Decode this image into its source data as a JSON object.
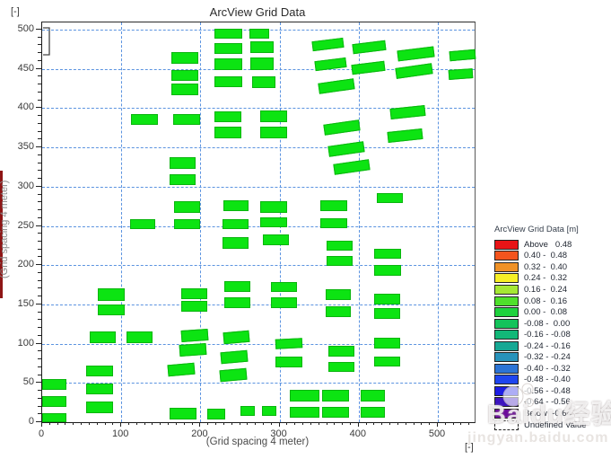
{
  "page": {
    "corner_top_left": "[-]",
    "corner_bottom_right": "[-]"
  },
  "chart": {
    "title": "ArcView Grid Data",
    "x_label": "(Grid spacing 4 meter)",
    "y_label": "(Grid spacing 4 meter)",
    "x_major_ticks": [
      0,
      100,
      200,
      300,
      400,
      500
    ],
    "y_major_ticks": [
      0,
      50,
      100,
      150,
      200,
      250,
      300,
      350,
      400,
      450,
      500
    ],
    "x_minor_step": 10,
    "y_minor_step": 10,
    "x_grid_lines": [
      100,
      200,
      300,
      400,
      500
    ],
    "y_grid_lines": [
      50,
      100,
      150,
      200,
      250,
      300,
      350,
      400,
      450,
      500
    ],
    "grid_color": "#5b93e0",
    "cell_color": "#0ce412"
  },
  "legend": {
    "title": "ArcView Grid Data [m]",
    "entries": [
      {
        "label": "Above   0.48",
        "color": "#e81417"
      },
      {
        "label": "0.40 -  0.48",
        "color": "#f4541d"
      },
      {
        "label": "0.32 -  0.40",
        "color": "#ef9227"
      },
      {
        "label": "0.24 -  0.32",
        "color": "#f7ef26"
      },
      {
        "label": "0.16 -  0.24",
        "color": "#a5e834"
      },
      {
        "label": "0.08 -  0.16",
        "color": "#4fe02b"
      },
      {
        "label": "0.00 -  0.08",
        "color": "#1ed23d"
      },
      {
        "label": "-0.08 -  0.00",
        "color": "#14c35b"
      },
      {
        "label": "-0.16 - -0.08",
        "color": "#12b878"
      },
      {
        "label": "-0.24 - -0.16",
        "color": "#16a894"
      },
      {
        "label": "-0.32 - -0.24",
        "color": "#2793bb"
      },
      {
        "label": "-0.40 - -0.32",
        "color": "#2c74d5"
      },
      {
        "label": "-0.48 - -0.40",
        "color": "#1e45ef"
      },
      {
        "label": "-0.56 - -0.48",
        "color": "#1d1de4"
      },
      {
        "label": "-0.64 - -0.56",
        "color": "#3c14c0"
      },
      {
        "label": "Below  -0.64",
        "color": "#6c0a9c"
      },
      {
        "label": "Undefined Value",
        "color": "#ffffff"
      }
    ]
  },
  "watermark": {
    "line1": "Baidu经验",
    "line2": "jingyan.baidu.com"
  },
  "chart_data": {
    "type": "heatmap",
    "title": "ArcView Grid Data",
    "units": "m",
    "xlabel": "(Grid spacing 4 meter)",
    "ylabel": "(Grid spacing 4 meter)",
    "xlim": [
      0,
      548
    ],
    "ylim": [
      0,
      509
    ],
    "grid_spacing_meters": 4,
    "cells_value_bin": "0.00 - 0.08",
    "legend_bins": [
      "Above 0.48",
      "0.40-0.48",
      "0.32-0.40",
      "0.24-0.32",
      "0.16-0.24",
      "0.08-0.16",
      "0.00-0.08",
      "-0.08-0.00",
      "-0.16--0.08",
      "-0.24--0.16",
      "-0.32--0.24",
      "-0.40--0.32",
      "-0.48--0.40",
      "-0.56--0.48",
      "-0.64--0.56",
      "Below -0.64",
      "Undefined Value"
    ],
    "rectangles_xywh_rot": [
      [
        163,
        456,
        34,
        15,
        0
      ],
      [
        163,
        435,
        34,
        14,
        0
      ],
      [
        163,
        417,
        34,
        14,
        0
      ],
      [
        218,
        488,
        35,
        13,
        0
      ],
      [
        262,
        488,
        25,
        13,
        0
      ],
      [
        218,
        469,
        35,
        14,
        0
      ],
      [
        263,
        470,
        30,
        15,
        0
      ],
      [
        218,
        449,
        35,
        14,
        0
      ],
      [
        263,
        449,
        30,
        15,
        0
      ],
      [
        218,
        427,
        35,
        14,
        0
      ],
      [
        265,
        426,
        30,
        15,
        0
      ],
      [
        341,
        474,
        40,
        13,
        -7
      ],
      [
        392,
        471,
        42,
        13,
        -7
      ],
      [
        449,
        462,
        46,
        14,
        -7
      ],
      [
        515,
        461,
        33,
        13,
        -5
      ],
      [
        345,
        449,
        40,
        13,
        -7
      ],
      [
        391,
        445,
        42,
        13,
        -7
      ],
      [
        447,
        440,
        47,
        14,
        -8
      ],
      [
        514,
        437,
        31,
        13,
        -4
      ],
      [
        349,
        421,
        45,
        14,
        -8
      ],
      [
        112,
        379,
        34,
        14,
        0
      ],
      [
        165,
        379,
        34,
        14,
        0
      ],
      [
        218,
        382,
        34,
        14,
        0
      ],
      [
        276,
        382,
        34,
        15,
        0
      ],
      [
        218,
        362,
        34,
        14,
        0
      ],
      [
        276,
        361,
        34,
        15,
        0
      ],
      [
        356,
        368,
        45,
        14,
        -8
      ],
      [
        440,
        388,
        44,
        14,
        -6
      ],
      [
        436,
        358,
        44,
        14,
        -6
      ],
      [
        362,
        341,
        45,
        14,
        -8
      ],
      [
        161,
        323,
        33,
        14,
        0
      ],
      [
        368,
        318,
        45,
        14,
        -8
      ],
      [
        161,
        302,
        33,
        14,
        0
      ],
      [
        167,
        267,
        33,
        15,
        0
      ],
      [
        229,
        269,
        32,
        14,
        0
      ],
      [
        276,
        267,
        34,
        15,
        0
      ],
      [
        352,
        269,
        34,
        14,
        0
      ],
      [
        423,
        279,
        33,
        13,
        0
      ],
      [
        111,
        246,
        32,
        13,
        0
      ],
      [
        167,
        246,
        32,
        13,
        0
      ],
      [
        228,
        246,
        33,
        13,
        0
      ],
      [
        276,
        248,
        34,
        13,
        0
      ],
      [
        352,
        247,
        34,
        13,
        0
      ],
      [
        228,
        221,
        33,
        15,
        0
      ],
      [
        279,
        225,
        33,
        14,
        0
      ],
      [
        359,
        218,
        33,
        13,
        0
      ],
      [
        419,
        208,
        34,
        13,
        0
      ],
      [
        359,
        199,
        33,
        13,
        0
      ],
      [
        419,
        186,
        34,
        14,
        0
      ],
      [
        70,
        155,
        34,
        15,
        0
      ],
      [
        176,
        157,
        33,
        14,
        0
      ],
      [
        230,
        166,
        33,
        14,
        0
      ],
      [
        289,
        166,
        33,
        13,
        0
      ],
      [
        358,
        156,
        32,
        13,
        0
      ],
      [
        419,
        150,
        33,
        14,
        0
      ],
      [
        70,
        136,
        34,
        14,
        0
      ],
      [
        176,
        141,
        33,
        14,
        0
      ],
      [
        230,
        145,
        33,
        14,
        0
      ],
      [
        289,
        145,
        33,
        14,
        0
      ],
      [
        358,
        134,
        32,
        14,
        0
      ],
      [
        419,
        132,
        33,
        13,
        0
      ],
      [
        60,
        101,
        33,
        14,
        0
      ],
      [
        107,
        101,
        32,
        14,
        0
      ],
      [
        176,
        103,
        34,
        15,
        -4
      ],
      [
        229,
        100,
        33,
        15,
        -5
      ],
      [
        295,
        93,
        34,
        13,
        -3
      ],
      [
        362,
        84,
        33,
        13,
        0
      ],
      [
        419,
        94,
        33,
        13,
        0
      ],
      [
        174,
        84,
        34,
        15,
        -4
      ],
      [
        226,
        75,
        34,
        15,
        -5
      ],
      [
        295,
        70,
        34,
        14,
        0
      ],
      [
        362,
        64,
        33,
        13,
        0
      ],
      [
        419,
        71,
        33,
        13,
        0
      ],
      [
        56,
        58,
        34,
        14,
        0
      ],
      [
        159,
        59,
        34,
        15,
        -5
      ],
      [
        224,
        52,
        34,
        15,
        -5
      ],
      [
        56,
        35,
        34,
        14,
        0
      ],
      [
        0,
        41,
        31,
        14,
        0
      ],
      [
        313,
        26,
        37,
        15,
        0
      ],
      [
        354,
        26,
        34,
        15,
        0
      ],
      [
        402,
        26,
        31,
        15,
        0
      ],
      [
        0,
        19,
        31,
        14,
        0
      ],
      [
        56,
        12,
        34,
        14,
        0
      ],
      [
        0,
        0,
        31,
        12,
        0
      ],
      [
        161,
        4,
        34,
        14,
        0
      ],
      [
        209,
        4,
        22,
        13,
        0
      ],
      [
        251,
        8,
        18,
        13,
        0
      ],
      [
        278,
        8,
        18,
        13,
        0
      ],
      [
        313,
        6,
        37,
        13,
        0
      ],
      [
        354,
        6,
        34,
        13,
        0
      ],
      [
        402,
        6,
        31,
        13,
        0
      ]
    ]
  }
}
